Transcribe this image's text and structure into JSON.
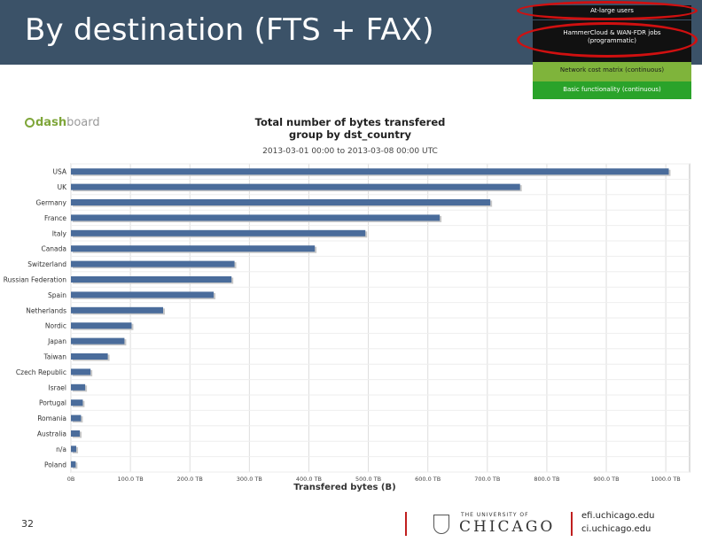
{
  "slide": {
    "title": "By destination (FTS + FAX)",
    "page_number": "32",
    "footer": {
      "university_small": "THE UNIVERSITY OF",
      "university_big": "CHICAGO",
      "site1": "efi.uchicago.edu",
      "site2": "ci.uchicago.edu"
    }
  },
  "stack": {
    "items": [
      "At-large users",
      "HammerCloud & WAN-FDR jobs (programmatic)",
      "Network cost matrix (continuous)",
      "Basic functionality (continuous)"
    ],
    "colors": [
      "#111111",
      "#111111",
      "#7fb43b",
      "#2aa32a"
    ]
  },
  "dashboard_logo": {
    "part1": "dash",
    "part2": "board"
  },
  "chart_data": {
    "type": "bar",
    "orientation": "horizontal",
    "title": "Total number of bytes transfered",
    "subtitle": "group by dst_country",
    "date_range": "2013-03-01 00:00 to 2013-03-08 00:00 UTC",
    "xlabel": "Transfered bytes (B)",
    "x_ticks": [
      "0B",
      "100.0 TB",
      "200.0 TB",
      "300.0 TB",
      "400.0 TB",
      "500.0 TB",
      "600.0 TB",
      "700.0 TB",
      "800.0 TB",
      "900.0 TB",
      "1000.0 TB"
    ],
    "x_tick_values": [
      0,
      100,
      200,
      300,
      400,
      500,
      600,
      700,
      800,
      900,
      1000
    ],
    "xlim": [
      0,
      1040
    ],
    "unit": "TB",
    "grid": true,
    "bar_color": "#4a6c9b",
    "categories": [
      "USA",
      "UK",
      "Germany",
      "France",
      "Italy",
      "Canada",
      "Switzerland",
      "Russian Federation",
      "Spain",
      "Netherlands",
      "Nordic",
      "Japan",
      "Taiwan",
      "Czech Republic",
      "Israel",
      "Portugal",
      "Romania",
      "Australia",
      "n/a",
      "Poland"
    ],
    "values": [
      1005,
      755,
      705,
      620,
      495,
      410,
      275,
      270,
      240,
      155,
      102,
      90,
      62,
      33,
      24,
      20,
      17,
      15,
      9,
      8
    ]
  }
}
